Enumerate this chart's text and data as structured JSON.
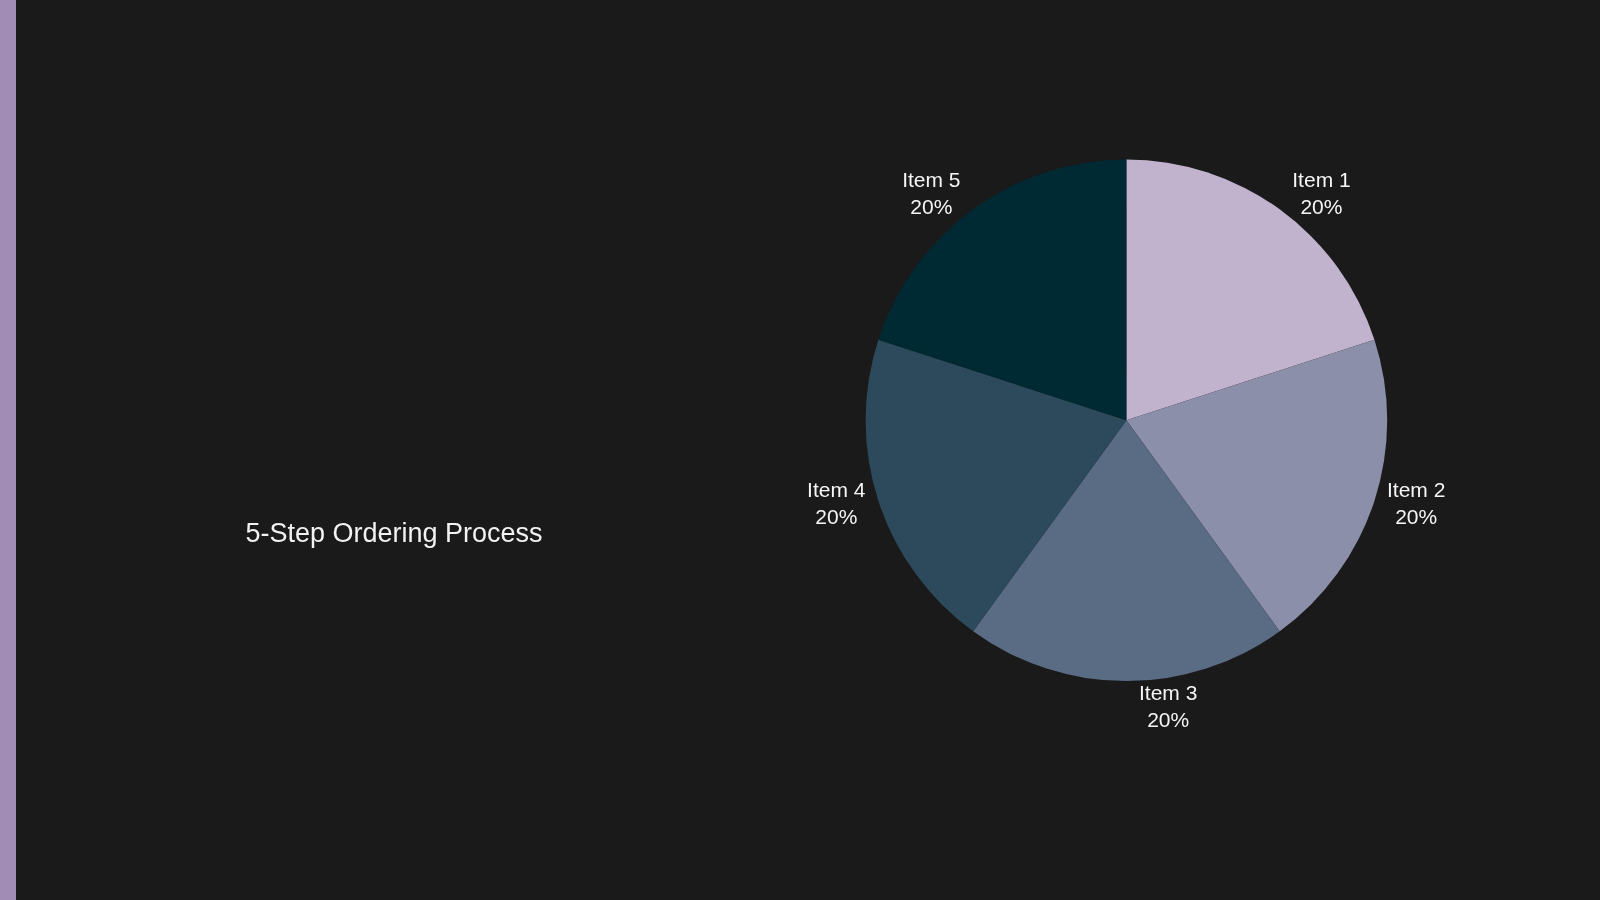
{
  "chart_data": {
    "type": "pie",
    "subtitle": "5-Step Ordering Process",
    "categories": [
      "Item 1",
      "Item 2",
      "Item 3",
      "Item 4",
      "Item 5"
    ],
    "values": [
      20,
      20,
      20,
      20,
      20
    ],
    "value_labels": [
      "20%",
      "20%",
      "20%",
      "20%",
      "20%"
    ],
    "colors": [
      "#c1b2cd",
      "#8c8fa9",
      "#5a6b84",
      "#2d4a5c",
      "#002a33"
    ],
    "legend": false
  }
}
